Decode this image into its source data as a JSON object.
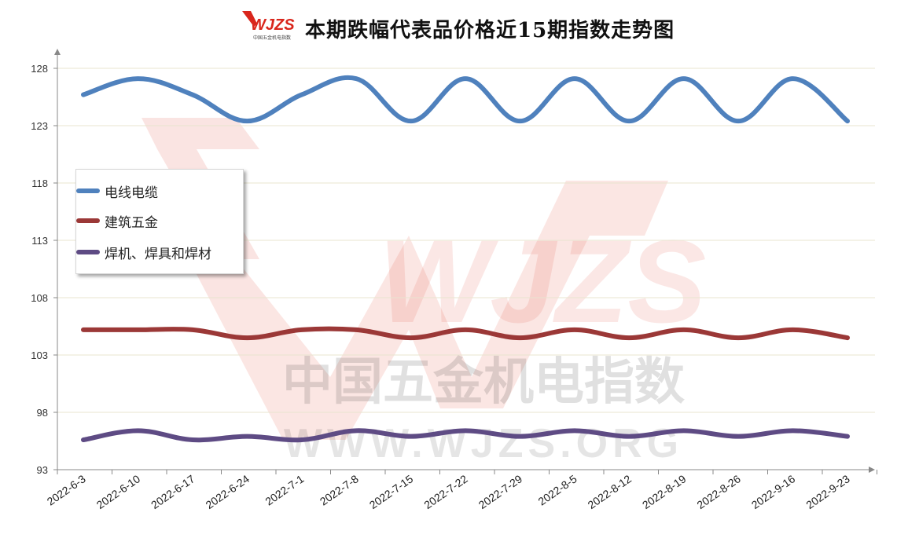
{
  "logo": {
    "brand_text": "WJZS",
    "sub_text": "中国五金机电指数"
  },
  "watermark": {
    "brand": "WJZS",
    "line1": "中国五金机电指数",
    "line2": "WWW.WJZS.ORG"
  },
  "chart_data": {
    "type": "line",
    "title": "本期跌幅代表品价格近15期指数走势图",
    "xlabel": "",
    "ylabel": "",
    "categories": [
      "2022-6-3",
      "2022-6-10",
      "2022-6-17",
      "2022-6-24",
      "2022-7-1",
      "2022-7-8",
      "2022-7-15",
      "2022-7-22",
      "2022-7-29",
      "2022-8-5",
      "2022-8-12",
      "2022-8-19",
      "2022-8-26",
      "2022-9-16",
      "2022-9-23"
    ],
    "ylim": [
      93,
      128
    ],
    "yticks": [
      93,
      98,
      103,
      108,
      113,
      118,
      123,
      128
    ],
    "grid": "horizontal",
    "legend_position": "left-middle",
    "series": [
      {
        "name": "电线电缆",
        "color": "#4f81bd",
        "values": [
          125.7,
          127.1,
          125.7,
          123.4,
          125.7,
          127.1,
          123.4,
          127.1,
          123.4,
          127.1,
          123.4,
          127.1,
          123.4,
          127.1,
          123.4
        ]
      },
      {
        "name": "建筑五金",
        "color": "#9b3837",
        "values": [
          105.2,
          105.2,
          105.2,
          104.5,
          105.2,
          105.2,
          104.5,
          105.2,
          104.5,
          105.2,
          104.5,
          105.2,
          104.5,
          105.2,
          104.5
        ]
      },
      {
        "name": "焊机、焊具和焊材",
        "color": "#5e4b84",
        "values": [
          95.6,
          96.4,
          95.6,
          95.9,
          95.6,
          96.4,
          95.9,
          96.4,
          95.9,
          96.4,
          95.9,
          96.4,
          95.9,
          96.4,
          95.9
        ]
      }
    ]
  }
}
